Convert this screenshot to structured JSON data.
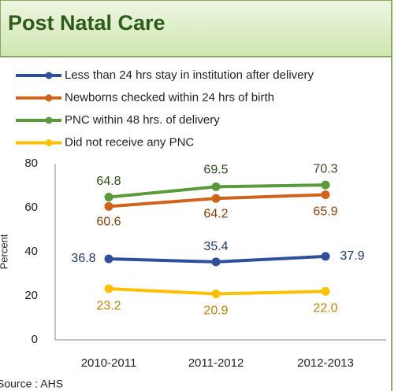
{
  "chart_data": {
    "type": "line",
    "title": "Post Natal Care",
    "ylabel": "Percent",
    "source": "Source : AHS",
    "categories": [
      "2010-2011",
      "2011-2012",
      "2012-2013"
    ],
    "series": [
      {
        "name": "Less than 24 hrs stay in institution after delivery",
        "color": "#2f4f9a",
        "values": [
          36.8,
          35.4,
          37.9
        ]
      },
      {
        "name": "Newborns checked within 24 hrs of birth",
        "color": "#d0621b",
        "values": [
          60.6,
          64.2,
          65.9
        ]
      },
      {
        "name": "PNC within 48 hrs. of delivery",
        "color": "#5a9a3a",
        "values": [
          64.8,
          69.5,
          70.3
        ]
      },
      {
        "name": "Did not receive any PNC",
        "color": "#ffc000",
        "values": [
          23.2,
          20.9,
          22.0
        ],
        "value_labels": [
          "23.2",
          "20.9",
          "22.0"
        ]
      }
    ],
    "ylim": [
      0,
      80
    ],
    "yticks": [
      0,
      20,
      40,
      60,
      80
    ],
    "grid": false,
    "legend": "top-left"
  }
}
